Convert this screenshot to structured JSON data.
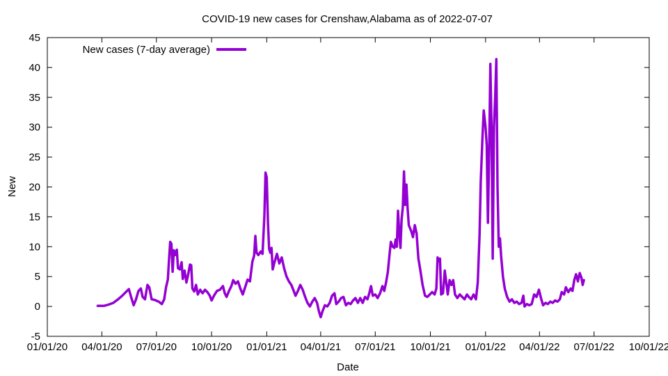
{
  "chart_data": {
    "type": "line",
    "title": "COVID-19 new cases for Crenshaw,Alabama as of 2022-07-07",
    "xlabel": "Date",
    "ylabel": "New",
    "x_axis": {
      "type": "date",
      "range": [
        "2020-01-01",
        "2022-10-01"
      ],
      "ticks": [
        {
          "date": "2020-01-01",
          "label": "01/01/20"
        },
        {
          "date": "2020-04-01",
          "label": "04/01/20"
        },
        {
          "date": "2020-07-01",
          "label": "07/01/20"
        },
        {
          "date": "2020-10-01",
          "label": "10/01/20"
        },
        {
          "date": "2021-01-01",
          "label": "01/01/21"
        },
        {
          "date": "2021-04-01",
          "label": "04/01/21"
        },
        {
          "date": "2021-07-01",
          "label": "07/01/21"
        },
        {
          "date": "2021-10-01",
          "label": "10/01/21"
        },
        {
          "date": "2022-01-01",
          "label": "01/01/22"
        },
        {
          "date": "2022-04-01",
          "label": "04/01/22"
        },
        {
          "date": "2022-07-01",
          "label": "07/01/22"
        },
        {
          "date": "2022-10-01",
          "label": "10/01/22"
        }
      ]
    },
    "y_axis": {
      "range": [
        -5,
        45
      ],
      "ticks": [
        -5,
        0,
        5,
        10,
        15,
        20,
        25,
        30,
        35,
        40,
        45
      ]
    },
    "grid": false,
    "legend": {
      "placement": "top-left"
    },
    "series": [
      {
        "name": "New cases (7-day average)",
        "color": "#9400d3",
        "points": [
          [
            "2020-03-25",
            0.1
          ],
          [
            "2020-04-05",
            0.1
          ],
          [
            "2020-04-12",
            0.3
          ],
          [
            "2020-04-20",
            0.6
          ],
          [
            "2020-04-28",
            1.2
          ],
          [
            "2020-05-05",
            1.8
          ],
          [
            "2020-05-12",
            2.5
          ],
          [
            "2020-05-16",
            2.9
          ],
          [
            "2020-05-20",
            1.5
          ],
          [
            "2020-05-24",
            0.2
          ],
          [
            "2020-05-28",
            1.2
          ],
          [
            "2020-06-01",
            2.6
          ],
          [
            "2020-06-05",
            3.0
          ],
          [
            "2020-06-08",
            1.6
          ],
          [
            "2020-06-12",
            1.2
          ],
          [
            "2020-06-16",
            3.6
          ],
          [
            "2020-06-19",
            3.2
          ],
          [
            "2020-06-23",
            1.2
          ],
          [
            "2020-06-28",
            1.1
          ],
          [
            "2020-07-05",
            0.8
          ],
          [
            "2020-07-10",
            0.4
          ],
          [
            "2020-07-14",
            1.2
          ],
          [
            "2020-07-17",
            3.2
          ],
          [
            "2020-07-20",
            4.5
          ],
          [
            "2020-07-22",
            7.8
          ],
          [
            "2020-07-24",
            10.8
          ],
          [
            "2020-07-26",
            10.5
          ],
          [
            "2020-07-28",
            5.8
          ],
          [
            "2020-07-30",
            9.4
          ],
          [
            "2020-08-02",
            8.6
          ],
          [
            "2020-08-04",
            9.5
          ],
          [
            "2020-08-06",
            6.4
          ],
          [
            "2020-08-09",
            6.2
          ],
          [
            "2020-08-12",
            7.4
          ],
          [
            "2020-08-14",
            4.6
          ],
          [
            "2020-08-17",
            6.0
          ],
          [
            "2020-08-20",
            4.0
          ],
          [
            "2020-08-23",
            5.4
          ],
          [
            "2020-08-26",
            7.0
          ],
          [
            "2020-08-28",
            6.9
          ],
          [
            "2020-08-30",
            3.0
          ],
          [
            "2020-09-02",
            2.5
          ],
          [
            "2020-09-05",
            3.6
          ],
          [
            "2020-09-08",
            2.0
          ],
          [
            "2020-09-12",
            2.8
          ],
          [
            "2020-09-16",
            2.2
          ],
          [
            "2020-09-20",
            2.8
          ],
          [
            "2020-09-24",
            2.4
          ],
          [
            "2020-09-28",
            1.8
          ],
          [
            "2020-10-01",
            1.0
          ],
          [
            "2020-10-05",
            1.8
          ],
          [
            "2020-10-10",
            2.6
          ],
          [
            "2020-10-15",
            2.8
          ],
          [
            "2020-10-20",
            3.4
          ],
          [
            "2020-10-23",
            2.2
          ],
          [
            "2020-10-26",
            1.6
          ],
          [
            "2020-10-30",
            2.6
          ],
          [
            "2020-11-03",
            3.4
          ],
          [
            "2020-11-06",
            4.4
          ],
          [
            "2020-11-10",
            3.8
          ],
          [
            "2020-11-14",
            4.2
          ],
          [
            "2020-11-18",
            3.0
          ],
          [
            "2020-11-22",
            2.0
          ],
          [
            "2020-11-26",
            3.2
          ],
          [
            "2020-11-30",
            4.5
          ],
          [
            "2020-12-04",
            4.2
          ],
          [
            "2020-12-08",
            7.5
          ],
          [
            "2020-12-11",
            8.5
          ],
          [
            "2020-12-13",
            11.8
          ],
          [
            "2020-12-15",
            9.0
          ],
          [
            "2020-12-18",
            8.6
          ],
          [
            "2020-12-22",
            9.2
          ],
          [
            "2020-12-25",
            8.8
          ],
          [
            "2020-12-28",
            15.0
          ],
          [
            "2020-12-30",
            22.4
          ],
          [
            "2021-01-01",
            21.6
          ],
          [
            "2021-01-03",
            14.0
          ],
          [
            "2021-01-05",
            9.6
          ],
          [
            "2021-01-07",
            9.0
          ],
          [
            "2021-01-09",
            9.8
          ],
          [
            "2021-01-11",
            6.2
          ],
          [
            "2021-01-14",
            7.4
          ],
          [
            "2021-01-18",
            8.8
          ],
          [
            "2021-01-22",
            7.2
          ],
          [
            "2021-01-26",
            8.2
          ],
          [
            "2021-01-30",
            6.4
          ],
          [
            "2021-02-03",
            5.0
          ],
          [
            "2021-02-07",
            4.2
          ],
          [
            "2021-02-11",
            3.6
          ],
          [
            "2021-02-15",
            2.6
          ],
          [
            "2021-02-18",
            1.8
          ],
          [
            "2021-02-22",
            2.6
          ],
          [
            "2021-02-26",
            3.6
          ],
          [
            "2021-03-02",
            2.8
          ],
          [
            "2021-03-06",
            1.6
          ],
          [
            "2021-03-10",
            0.6
          ],
          [
            "2021-03-14",
            0.0
          ],
          [
            "2021-03-18",
            0.8
          ],
          [
            "2021-03-22",
            1.4
          ],
          [
            "2021-03-26",
            0.6
          ],
          [
            "2021-03-29",
            -0.8
          ],
          [
            "2021-04-01",
            -1.8
          ],
          [
            "2021-04-04",
            -0.8
          ],
          [
            "2021-04-08",
            0.2
          ],
          [
            "2021-04-12",
            0.0
          ],
          [
            "2021-04-16",
            0.6
          ],
          [
            "2021-04-20",
            1.8
          ],
          [
            "2021-04-24",
            2.2
          ],
          [
            "2021-04-27",
            0.4
          ],
          [
            "2021-05-01",
            0.8
          ],
          [
            "2021-05-05",
            1.4
          ],
          [
            "2021-05-09",
            1.6
          ],
          [
            "2021-05-13",
            0.2
          ],
          [
            "2021-05-17",
            0.6
          ],
          [
            "2021-05-21",
            0.4
          ],
          [
            "2021-05-25",
            1.0
          ],
          [
            "2021-05-29",
            1.4
          ],
          [
            "2021-06-02",
            0.6
          ],
          [
            "2021-06-06",
            1.4
          ],
          [
            "2021-06-10",
            0.6
          ],
          [
            "2021-06-14",
            1.6
          ],
          [
            "2021-06-18",
            1.2
          ],
          [
            "2021-06-21",
            2.2
          ],
          [
            "2021-06-24",
            3.4
          ],
          [
            "2021-06-27",
            1.8
          ],
          [
            "2021-07-01",
            2.0
          ],
          [
            "2021-07-05",
            1.4
          ],
          [
            "2021-07-09",
            2.2
          ],
          [
            "2021-07-13",
            3.4
          ],
          [
            "2021-07-16",
            2.6
          ],
          [
            "2021-07-19",
            4.0
          ],
          [
            "2021-07-22",
            5.8
          ],
          [
            "2021-07-25",
            8.8
          ],
          [
            "2021-07-27",
            10.8
          ],
          [
            "2021-07-30",
            10.0
          ],
          [
            "2021-08-02",
            9.8
          ],
          [
            "2021-08-04",
            11.2
          ],
          [
            "2021-08-06",
            10.0
          ],
          [
            "2021-08-08",
            16.0
          ],
          [
            "2021-08-10",
            12.4
          ],
          [
            "2021-08-12",
            9.8
          ],
          [
            "2021-08-14",
            14.6
          ],
          [
            "2021-08-16",
            16.6
          ],
          [
            "2021-08-18",
            22.6
          ],
          [
            "2021-08-20",
            17.0
          ],
          [
            "2021-08-22",
            20.4
          ],
          [
            "2021-08-24",
            16.4
          ],
          [
            "2021-08-26",
            13.6
          ],
          [
            "2021-08-30",
            12.6
          ],
          [
            "2021-09-02",
            11.6
          ],
          [
            "2021-09-05",
            13.6
          ],
          [
            "2021-09-08",
            12.2
          ],
          [
            "2021-09-11",
            8.0
          ],
          [
            "2021-09-14",
            6.2
          ],
          [
            "2021-09-18",
            3.6
          ],
          [
            "2021-09-22",
            1.8
          ],
          [
            "2021-09-26",
            1.6
          ],
          [
            "2021-09-30",
            2.0
          ],
          [
            "2021-10-04",
            2.4
          ],
          [
            "2021-10-08",
            2.0
          ],
          [
            "2021-10-11",
            3.0
          ],
          [
            "2021-10-13",
            8.2
          ],
          [
            "2021-10-15",
            7.6
          ],
          [
            "2021-10-17",
            8.0
          ],
          [
            "2021-10-19",
            2.0
          ],
          [
            "2021-10-22",
            2.2
          ],
          [
            "2021-10-25",
            6.0
          ],
          [
            "2021-10-27",
            4.4
          ],
          [
            "2021-10-30",
            2.0
          ],
          [
            "2021-11-02",
            4.4
          ],
          [
            "2021-11-05",
            3.6
          ],
          [
            "2021-11-08",
            4.4
          ],
          [
            "2021-11-11",
            2.0
          ],
          [
            "2021-11-15",
            1.4
          ],
          [
            "2021-11-19",
            2.0
          ],
          [
            "2021-11-23",
            1.6
          ],
          [
            "2021-11-27",
            1.2
          ],
          [
            "2021-12-01",
            2.0
          ],
          [
            "2021-12-04",
            1.6
          ],
          [
            "2021-12-08",
            1.2
          ],
          [
            "2021-12-12",
            2.0
          ],
          [
            "2021-12-16",
            1.2
          ],
          [
            "2021-12-19",
            4.0
          ],
          [
            "2021-12-22",
            12.0
          ],
          [
            "2021-12-24",
            21.0
          ],
          [
            "2021-12-27",
            28.6
          ],
          [
            "2021-12-29",
            32.8
          ],
          [
            "2022-01-01",
            30.0
          ],
          [
            "2022-01-03",
            27.0
          ],
          [
            "2022-01-05",
            14.0
          ],
          [
            "2022-01-07",
            26.0
          ],
          [
            "2022-01-09",
            40.6
          ],
          [
            "2022-01-11",
            30.0
          ],
          [
            "2022-01-13",
            8.0
          ],
          [
            "2022-01-15",
            30.0
          ],
          [
            "2022-01-17",
            35.0
          ],
          [
            "2022-01-19",
            41.4
          ],
          [
            "2022-01-21",
            20.0
          ],
          [
            "2022-01-23",
            10.0
          ],
          [
            "2022-01-25",
            11.4
          ],
          [
            "2022-01-27",
            8.4
          ],
          [
            "2022-01-30",
            5.0
          ],
          [
            "2022-02-02",
            3.0
          ],
          [
            "2022-02-06",
            1.6
          ],
          [
            "2022-02-10",
            0.8
          ],
          [
            "2022-02-14",
            1.2
          ],
          [
            "2022-02-18",
            0.6
          ],
          [
            "2022-02-22",
            0.8
          ],
          [
            "2022-02-26",
            0.4
          ],
          [
            "2022-03-02",
            0.6
          ],
          [
            "2022-03-05",
            1.8
          ],
          [
            "2022-03-07",
            0.0
          ],
          [
            "2022-03-11",
            0.4
          ],
          [
            "2022-03-15",
            0.2
          ],
          [
            "2022-03-19",
            0.4
          ],
          [
            "2022-03-23",
            2.0
          ],
          [
            "2022-03-27",
            1.6
          ],
          [
            "2022-03-31",
            2.8
          ],
          [
            "2022-04-04",
            1.2
          ],
          [
            "2022-04-07",
            0.2
          ],
          [
            "2022-04-11",
            0.6
          ],
          [
            "2022-04-15",
            0.4
          ],
          [
            "2022-04-19",
            0.8
          ],
          [
            "2022-04-23",
            0.6
          ],
          [
            "2022-04-27",
            1.0
          ],
          [
            "2022-05-01",
            0.8
          ],
          [
            "2022-05-05",
            1.2
          ],
          [
            "2022-05-08",
            2.4
          ],
          [
            "2022-05-12",
            2.0
          ],
          [
            "2022-05-15",
            3.2
          ],
          [
            "2022-05-19",
            2.4
          ],
          [
            "2022-05-23",
            3.0
          ],
          [
            "2022-05-26",
            2.6
          ],
          [
            "2022-05-29",
            4.4
          ],
          [
            "2022-06-01",
            5.4
          ],
          [
            "2022-06-04",
            4.2
          ],
          [
            "2022-06-07",
            5.6
          ],
          [
            "2022-06-10",
            4.8
          ],
          [
            "2022-06-12",
            3.6
          ],
          [
            "2022-06-14",
            4.4
          ]
        ]
      }
    ]
  }
}
